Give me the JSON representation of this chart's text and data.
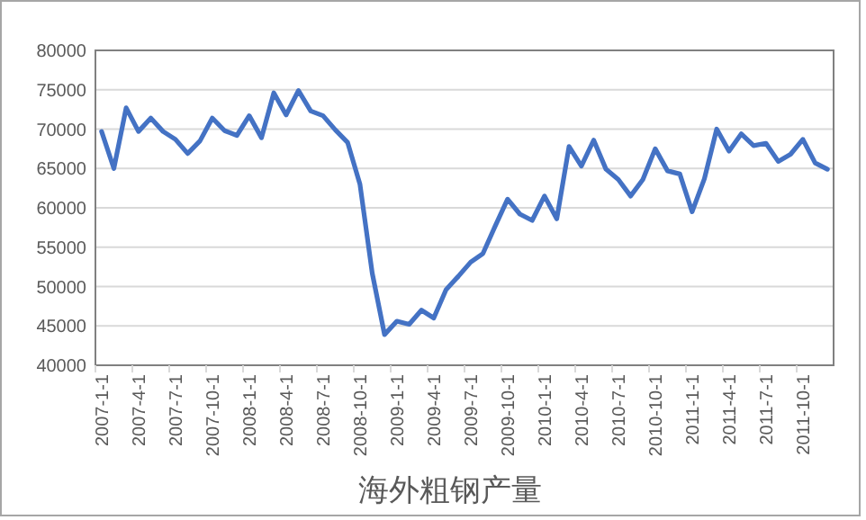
{
  "chart_data": {
    "type": "line",
    "title": "海外粗钢产量",
    "categories": [
      "2007-1-1",
      null,
      null,
      "2007-4-1",
      null,
      null,
      "2007-7-1",
      null,
      null,
      "2007-10-1",
      null,
      null,
      "2008-1-1",
      null,
      null,
      "2008-4-1",
      null,
      null,
      "2008-7-1",
      null,
      null,
      "2008-10-1",
      null,
      null,
      "2009-1-1",
      null,
      null,
      "2009-4-1",
      null,
      null,
      "2009-7-1",
      null,
      null,
      "2009-10-1",
      null,
      null,
      "2010-1-1",
      null,
      null,
      "2010-4-1",
      null,
      null,
      "2010-7-1",
      null,
      null,
      "2010-10-1",
      null,
      null,
      "2011-1-1",
      null,
      null,
      "2011-4-1",
      null,
      null,
      "2011-7-1",
      null,
      null,
      "2011-10-1",
      null,
      null
    ],
    "series": [
      {
        "color": "#4472c4",
        "values": [
          69700,
          65000,
          72700,
          69700,
          71400,
          69700,
          68700,
          66900,
          68500,
          71400,
          69800,
          69200,
          71700,
          68900,
          74600,
          71800,
          74900,
          72300,
          71700,
          69900,
          68300,
          63000,
          51700,
          43900,
          45600,
          45200,
          47000,
          46000,
          49600,
          51300,
          53100,
          54200,
          57700,
          61100,
          59200,
          58400,
          61500,
          58600,
          67800,
          65300,
          68600,
          64900,
          63600,
          61500,
          63600,
          67500,
          64700,
          64300,
          59500,
          63700,
          70000,
          67200,
          69400,
          67900,
          68200,
          65900,
          66800,
          68700,
          65700,
          64900
        ]
      }
    ],
    "ylim": [
      40000,
      80000
    ],
    "yticks": [
      40000,
      45000,
      50000,
      55000,
      60000,
      65000,
      70000,
      75000,
      80000
    ],
    "grid": "y",
    "marker": "none",
    "line_style": "solid"
  }
}
